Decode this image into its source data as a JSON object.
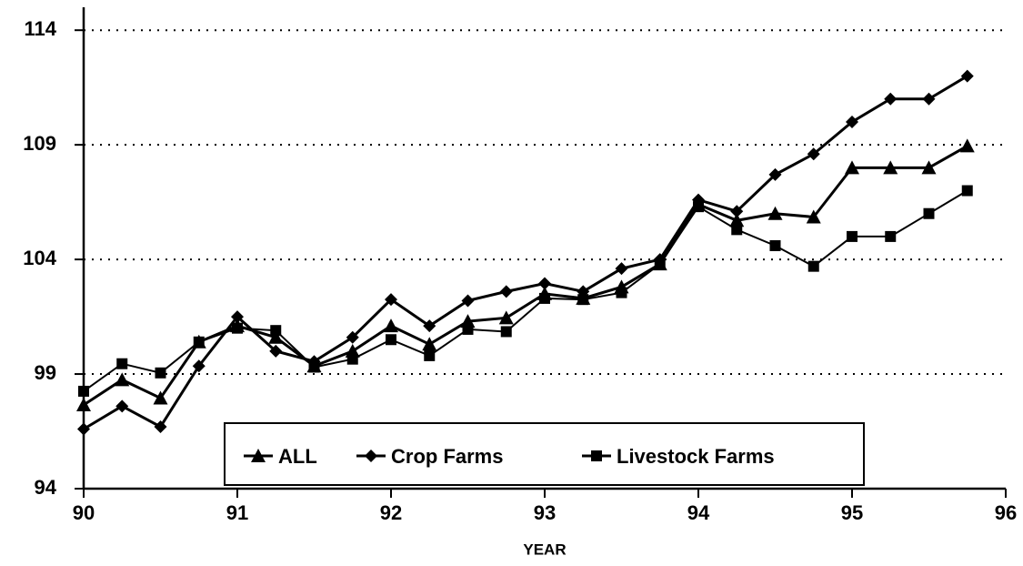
{
  "chart_data": {
    "type": "line",
    "x": [
      90,
      90.25,
      90.5,
      90.75,
      91,
      91.25,
      91.5,
      91.75,
      92,
      92.25,
      92.5,
      92.75,
      93,
      93.25,
      93.5,
      93.75,
      94,
      94.25,
      94.5,
      94.75,
      95,
      95.25,
      95.5,
      95.75
    ],
    "series": [
      {
        "name": "ALL",
        "color": "#000000",
        "marker": "triangle",
        "values": [
          97.65,
          98.75,
          97.95,
          100.4,
          101.1,
          100.6,
          99.35,
          100.0,
          101.1,
          100.3,
          101.3,
          101.45,
          102.5,
          102.3,
          102.8,
          103.8,
          106.4,
          105.7,
          106.0,
          105.85,
          108.0,
          108.0,
          108.0,
          108.95
        ]
      },
      {
        "name": "Crop Farms",
        "color": "#000000",
        "marker": "diamond",
        "values": [
          96.6,
          97.6,
          96.7,
          99.35,
          101.5,
          100.0,
          99.55,
          100.6,
          102.25,
          101.1,
          102.2,
          102.6,
          102.95,
          102.6,
          103.6,
          104.0,
          106.6,
          106.1,
          107.7,
          108.6,
          110.0,
          111.0,
          111.0,
          112.0
        ]
      },
      {
        "name": "Livestock Farms",
        "color": "#000000",
        "marker": "square",
        "values": [
          98.25,
          99.45,
          99.05,
          100.4,
          101.0,
          100.9,
          99.3,
          99.65,
          100.5,
          99.8,
          100.95,
          100.85,
          102.3,
          102.25,
          102.55,
          103.8,
          106.3,
          105.3,
          104.6,
          103.7,
          105.0,
          105.0,
          106.0,
          107.0
        ]
      }
    ],
    "xlabel": "YEAR",
    "xlim": [
      90,
      96
    ],
    "xticks": [
      90,
      91,
      92,
      93,
      94,
      95,
      96
    ],
    "ylim": [
      94,
      115
    ],
    "yticks": [
      94,
      99,
      104,
      109,
      114
    ],
    "grid": true,
    "legend": "bottom"
  }
}
